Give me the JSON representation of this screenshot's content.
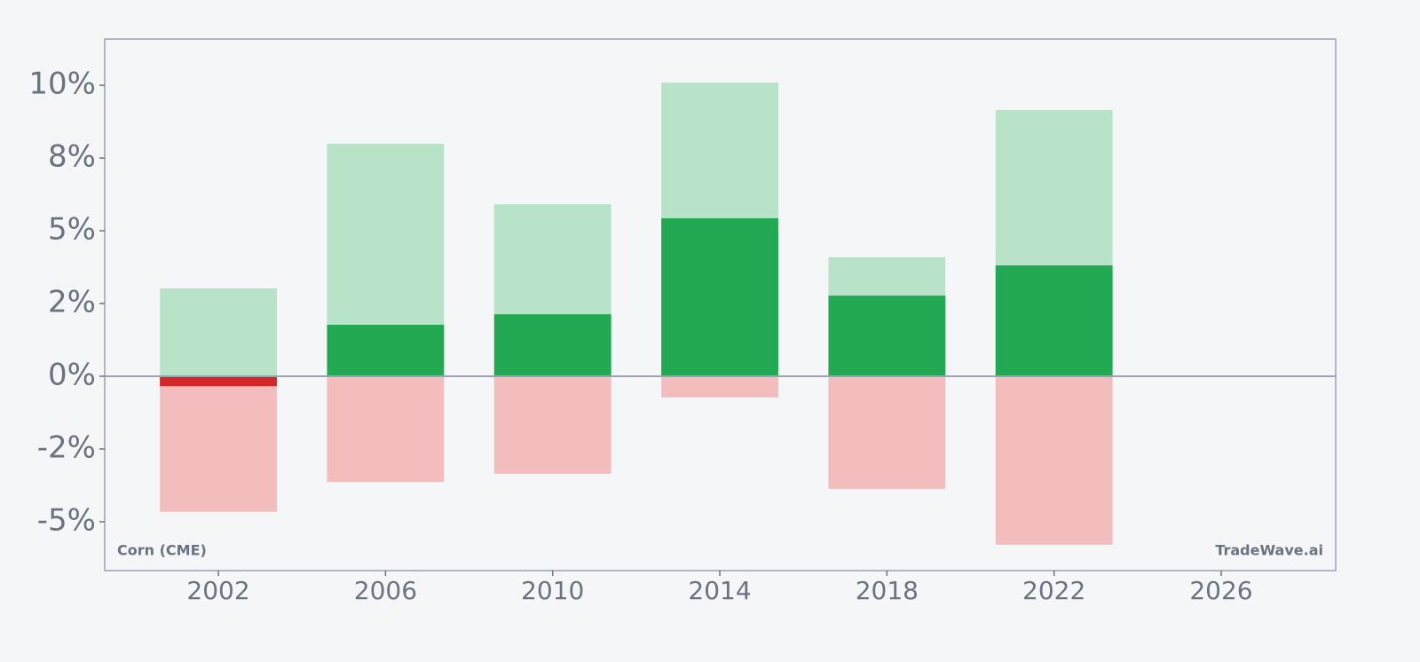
{
  "chart_data": {
    "type": "bar",
    "annotations": [
      "Corn (CME)",
      "TradeWave.ai"
    ],
    "x": [
      2002,
      2006,
      2010,
      2014,
      2018,
      2022
    ],
    "series": [
      {
        "color": "#b9e3c9",
        "values": [
          3.02,
          7.99,
          5.91,
          10.09,
          4.09,
          9.15
        ]
      },
      {
        "color": "#f3bdbd",
        "values": [
          -4.66,
          -3.63,
          -3.35,
          -0.73,
          -3.87,
          -5.79
        ]
      },
      {
        "color": "#23a853",
        "negative_color": "#d62728",
        "values": [
          -0.34,
          1.77,
          2.13,
          5.43,
          2.77,
          3.81
        ]
      }
    ],
    "bar_width": 2.8,
    "xlim": [
      1999.28,
      2028.74
    ],
    "xticks": [
      2002,
      2006,
      2010,
      2014,
      2018,
      2022,
      2026
    ],
    "ylim": [
      -6.68,
      11.59
    ],
    "yticks": [
      {
        "value": 10,
        "label": "10%"
      },
      {
        "value": 7.5,
        "label": "8%"
      },
      {
        "value": 5,
        "label": "5%"
      },
      {
        "value": 2.5,
        "label": "2%"
      },
      {
        "value": 0,
        "label": "0%"
      },
      {
        "value": -2.5,
        "label": "-2%"
      },
      {
        "value": -5,
        "label": "-5%"
      }
    ],
    "grid": false
  }
}
